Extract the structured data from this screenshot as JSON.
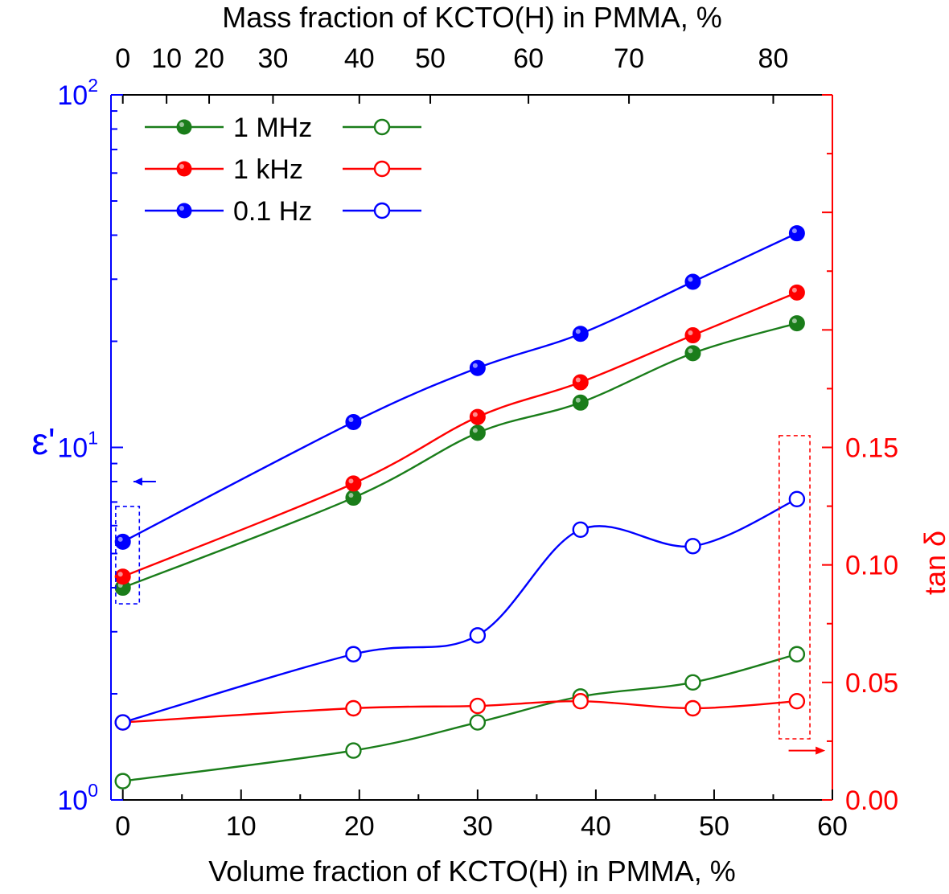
{
  "chart_data": {
    "type": "scatter",
    "x_label": "Volume fraction of KCTO(H) in PMMA, %",
    "x_ticks": [
      0,
      10,
      20,
      30,
      40,
      50,
      60
    ],
    "x_range": [
      -1,
      60
    ],
    "top_label": "Mass fraction of KCTO(H) in PMMA, %",
    "top_ticks": [
      {
        "label": "0",
        "x": 0
      },
      {
        "label": "10",
        "x": 3.7
      },
      {
        "label": "20",
        "x": 7.3
      },
      {
        "label": "30",
        "x": 12.7
      },
      {
        "label": "40",
        "x": 20.0
      },
      {
        "label": "50",
        "x": 26.0
      },
      {
        "label": "60",
        "x": 34.3
      },
      {
        "label": "70",
        "x": 42.8
      },
      {
        "label": "80",
        "x": 55.0
      }
    ],
    "left_label": "ε'",
    "left_scale": "log",
    "left_range": [
      1,
      100
    ],
    "left_ticks": [
      {
        "base": "10",
        "exp": "0",
        "value": 1
      },
      {
        "base": "10",
        "exp": "1",
        "value": 10
      },
      {
        "base": "10",
        "exp": "2",
        "value": 100
      }
    ],
    "right_label": "tan δ",
    "right_range": [
      0,
      0.3
    ],
    "right_ticks": [
      "0.00",
      "0.05",
      "0.10",
      "0.15"
    ],
    "colors": {
      "1 MHz": "#1a7d1a",
      "1 kHz": "#ff0000",
      "0.1 Hz": "#0000ff",
      "left_axis": "#0000ff",
      "right_axis": "#ff0000"
    },
    "legend": {
      "placement": "top-left",
      "entries": [
        "1 MHz",
        "1 kHz",
        "0.1 Hz"
      ]
    },
    "series": [
      {
        "name": "1 MHz",
        "quantity": "permittivity",
        "marker": "filled",
        "x": [
          0,
          19.5,
          30,
          38.7,
          48.2,
          57
        ],
        "y": [
          4.0,
          7.2,
          11.0,
          13.4,
          18.5,
          22.5
        ]
      },
      {
        "name": "1 kHz",
        "quantity": "permittivity",
        "marker": "filled",
        "x": [
          0,
          19.5,
          30,
          38.7,
          48.2,
          57
        ],
        "y": [
          4.3,
          7.9,
          12.2,
          15.3,
          20.8,
          27.5
        ]
      },
      {
        "name": "0.1 Hz",
        "quantity": "permittivity",
        "marker": "filled",
        "x": [
          0,
          19.5,
          30,
          38.7,
          48.2,
          57
        ],
        "y": [
          5.4,
          11.8,
          16.8,
          21.0,
          29.5,
          40.5
        ]
      },
      {
        "name": "1 MHz",
        "quantity": "loss",
        "marker": "open",
        "x": [
          0,
          19.5,
          30,
          38.7,
          48.2,
          57
        ],
        "y": [
          0.008,
          0.021,
          0.033,
          0.044,
          0.05,
          0.062
        ]
      },
      {
        "name": "1 kHz",
        "quantity": "loss",
        "marker": "open",
        "x": [
          0,
          19.5,
          30,
          38.7,
          48.2,
          57
        ],
        "y": [
          0.033,
          0.039,
          0.04,
          0.042,
          0.039,
          0.042
        ]
      },
      {
        "name": "0.1 Hz",
        "quantity": "loss",
        "marker": "open",
        "x": [
          0,
          19.5,
          30,
          38.7,
          48.2,
          57
        ],
        "y": [
          0.033,
          0.062,
          0.07,
          0.115,
          0.108,
          0.128
        ]
      }
    ]
  }
}
